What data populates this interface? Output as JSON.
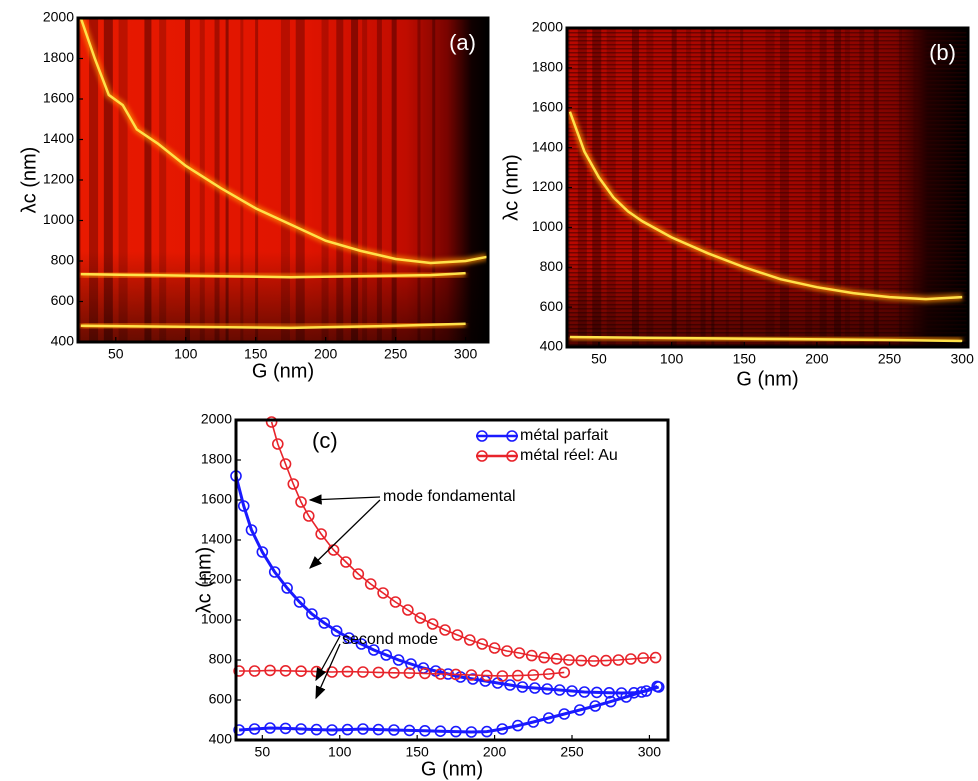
{
  "chart_data": [
    {
      "type": "heatmap",
      "label": "(a)",
      "xlabel": "G (nm)",
      "ylabel": "λc (nm)",
      "xlim": [
        23,
        316
      ],
      "ylim": [
        400,
        2000
      ],
      "xticks": [
        50,
        100,
        150,
        200,
        250,
        300
      ],
      "yticks": [
        400,
        600,
        800,
        1000,
        1200,
        1400,
        1600,
        1800,
        2000
      ],
      "ridge_color": "#ffe14a",
      "ridges": [
        {
          "x": [
            25,
            35,
            45,
            55,
            65,
            80,
            100,
            125,
            150,
            175,
            200,
            225,
            250,
            275,
            300,
            315
          ],
          "values": [
            2000,
            1800,
            1620,
            1570,
            1450,
            1380,
            1270,
            1160,
            1060,
            980,
            900,
            850,
            810,
            790,
            800,
            820
          ]
        },
        {
          "x": [
            25,
            75,
            125,
            175,
            225,
            275,
            300
          ],
          "values": [
            735,
            730,
            725,
            720,
            725,
            730,
            740
          ]
        },
        {
          "x": [
            25,
            100,
            175,
            250,
            300
          ],
          "values": [
            480,
            475,
            470,
            480,
            490
          ]
        }
      ]
    },
    {
      "type": "heatmap",
      "label": "(b)",
      "xlabel": "G (nm)",
      "ylabel": "λc (nm)",
      "xlim": [
        28,
        304
      ],
      "ylim": [
        400,
        2000
      ],
      "xticks": [
        50,
        100,
        150,
        200,
        250,
        300
      ],
      "yticks": [
        400,
        600,
        800,
        1000,
        1200,
        1400,
        1600,
        1800,
        2000
      ],
      "ridge_color": "#ffe14a",
      "ridges": [
        {
          "x": [
            30,
            40,
            50,
            60,
            70,
            80,
            90,
            100,
            125,
            150,
            175,
            200,
            225,
            250,
            275,
            300
          ],
          "values": [
            1580,
            1380,
            1250,
            1150,
            1080,
            1030,
            990,
            950,
            870,
            800,
            740,
            700,
            670,
            650,
            640,
            650
          ]
        },
        {
          "x": [
            30,
            100,
            175,
            250,
            300
          ],
          "values": [
            450,
            445,
            440,
            435,
            430
          ]
        }
      ]
    },
    {
      "type": "line",
      "label": "(c)",
      "xlabel": "G (nm)",
      "ylabel": "λc (nm)",
      "xlim": [
        33,
        312
      ],
      "ylim": [
        400,
        2000
      ],
      "xticks": [
        50,
        100,
        150,
        200,
        250,
        300
      ],
      "yticks": [
        400,
        600,
        800,
        1000,
        1200,
        1400,
        1600,
        1800,
        2000
      ],
      "annotations": [
        "mode fondamental",
        "second mode"
      ],
      "series": [
        {
          "name": "métal parfait",
          "color": "#1a1aff",
          "branches": [
            {
              "x": [
                33,
                38,
                43,
                50,
                58,
                66,
                74,
                82,
                90,
                98,
                106,
                114,
                122,
                130,
                138,
                146,
                154,
                162,
                170,
                178,
                186,
                194,
                202,
                210,
                218,
                226,
                234,
                242,
                250,
                258,
                266,
                274,
                282,
                290,
                298,
                306
              ],
              "values": [
                1720,
                1570,
                1450,
                1340,
                1240,
                1160,
                1090,
                1030,
                985,
                945,
                910,
                880,
                850,
                825,
                800,
                780,
                760,
                745,
                730,
                715,
                705,
                695,
                685,
                675,
                665,
                660,
                655,
                650,
                645,
                640,
                638,
                636,
                635,
                636,
                645,
                665
              ]
            },
            {
              "x": [
                35,
                45,
                55,
                65,
                75,
                85,
                95,
                105,
                115,
                125,
                135,
                145,
                155,
                165,
                175,
                185,
                195,
                205,
                215,
                225,
                235,
                245,
                255,
                265,
                275,
                285,
                295,
                305
              ],
              "values": [
                450,
                455,
                460,
                458,
                455,
                452,
                450,
                452,
                455,
                452,
                450,
                448,
                446,
                444,
                442,
                440,
                442,
                455,
                472,
                490,
                510,
                530,
                550,
                570,
                592,
                615,
                640,
                668
              ]
            }
          ]
        },
        {
          "name": "métal réel: Au",
          "color": "#e8242b",
          "branches": [
            {
              "x": [
                56,
                60,
                65,
                70,
                75,
                80,
                88,
                96,
                104,
                112,
                120,
                128,
                136,
                144,
                152,
                160,
                168,
                176,
                184,
                192,
                200,
                208,
                216,
                224,
                232,
                240,
                248,
                256,
                264,
                272,
                280,
                288,
                296,
                304
              ],
              "values": [
                1990,
                1880,
                1780,
                1680,
                1590,
                1520,
                1430,
                1350,
                1290,
                1230,
                1180,
                1135,
                1090,
                1050,
                1010,
                980,
                950,
                925,
                900,
                880,
                860,
                845,
                835,
                822,
                812,
                806,
                800,
                797,
                795,
                797,
                800,
                805,
                810,
                812
              ]
            },
            {
              "x": [
                35,
                45,
                55,
                65,
                75,
                85,
                95,
                105,
                115,
                125,
                135,
                145,
                155,
                165,
                175,
                185,
                195,
                205,
                215,
                225,
                235,
                245
              ],
              "values": [
                745,
                745,
                748,
                746,
                744,
                742,
                740,
                742,
                740,
                738,
                736,
                735,
                733,
                730,
                728,
                725,
                722,
                720,
                722,
                725,
                730,
                738
              ]
            }
          ]
        }
      ]
    }
  ]
}
